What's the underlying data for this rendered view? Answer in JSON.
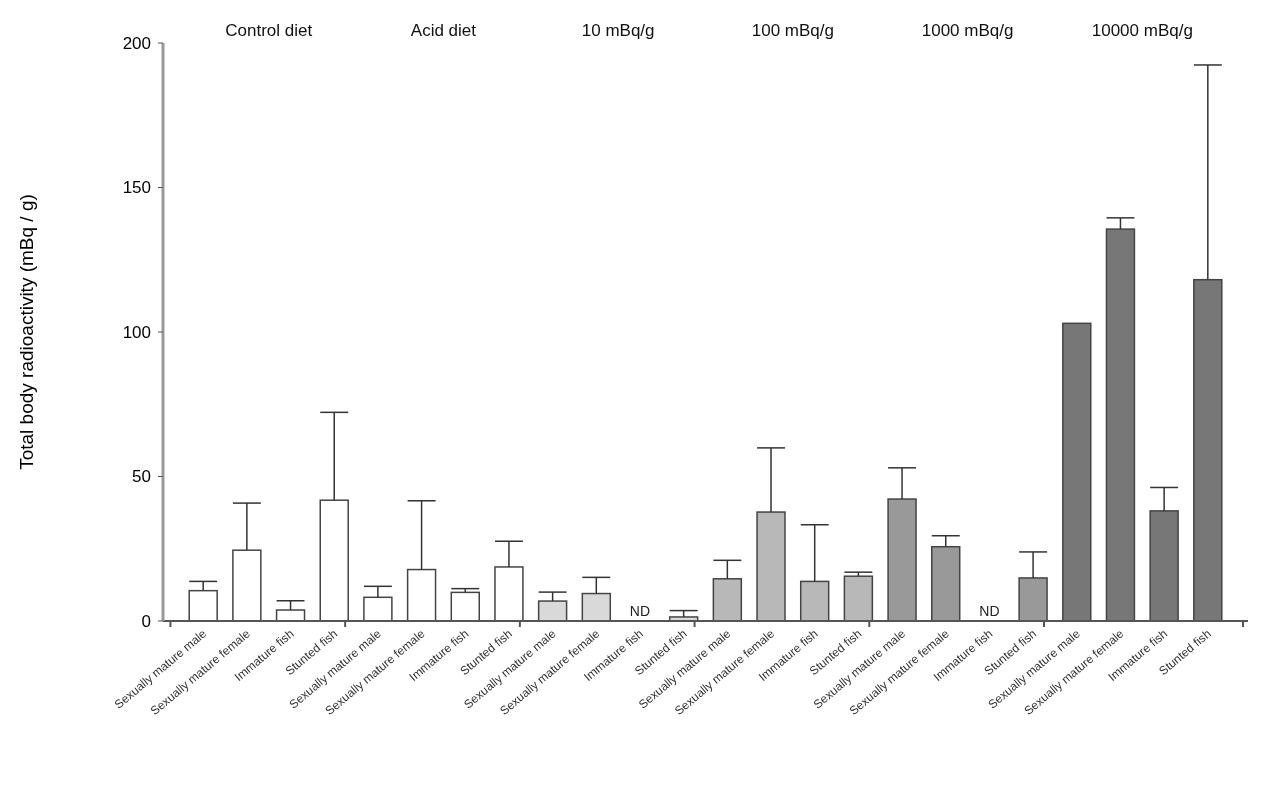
{
  "chart_data": {
    "type": "bar",
    "ylabel": "Total body radioactivity (mBq / g)",
    "ylim": [
      0,
      200
    ],
    "yticks": [
      0,
      50,
      100,
      150,
      200
    ],
    "annotations": [
      "Control diet",
      "Acid diet",
      "10 mBq/g",
      "100 mBq/g",
      "1000 mBq/g",
      "10000 mBq/g"
    ],
    "categories": [
      "Sexually mature male",
      "Sexually mature female",
      "Immature fish",
      "Stunted fish",
      "Sexually mature male",
      "Sexually mature female",
      "Immature fish",
      "Stunted fish",
      "Sexually mature male",
      "Sexually mature female",
      "Immature fish",
      "Stunted fish",
      "Sexually mature male",
      "Sexually mature female",
      "Immature fish",
      "Stunted fish",
      "Sexually mature male",
      "Sexually mature female",
      "Immature fish",
      "Stunted fish",
      "Sexually mature male",
      "Sexually mature female",
      "Immature fish",
      "Stunted fish"
    ],
    "series": [
      {
        "color": "#ffffff",
        "values": [
          10.5,
          24.5,
          3.8,
          41.8,
          null,
          null,
          null,
          null,
          null,
          null,
          null,
          null,
          null,
          null,
          null,
          null,
          null,
          null,
          null,
          null,
          null,
          null,
          null,
          null
        ],
        "errors": [
          [
            10.5,
            13.7
          ],
          [
            24.5,
            40.8
          ],
          [
            3.8,
            7.0
          ],
          [
            41.8,
            72.2
          ],
          null,
          null,
          null,
          null,
          null,
          null,
          null,
          null,
          null,
          null,
          null,
          null,
          null,
          null,
          null,
          null,
          null,
          null,
          null,
          null
        ]
      },
      {
        "color": "#ffffff",
        "values": [
          null,
          null,
          null,
          null,
          8.2,
          17.8,
          9.9,
          18.7,
          null,
          null,
          null,
          null,
          null,
          null,
          null,
          null,
          null,
          null,
          null,
          null,
          null,
          null,
          null,
          null
        ],
        "errors": [
          null,
          null,
          null,
          null,
          [
            8.2,
            12.0
          ],
          [
            17.8,
            41.6
          ],
          [
            9.9,
            11.2
          ],
          [
            18.7,
            27.6
          ],
          null,
          null,
          null,
          null,
          null,
          null,
          null,
          null,
          null,
          null,
          null,
          null,
          null,
          null,
          null,
          null
        ]
      },
      {
        "color": "#d9d9d9",
        "values": [
          null,
          null,
          null,
          null,
          null,
          null,
          null,
          null,
          6.9,
          9.5,
          null,
          1.4,
          null,
          null,
          null,
          null,
          null,
          null,
          null,
          null,
          null,
          null,
          null,
          null
        ],
        "errors": [
          null,
          null,
          null,
          null,
          null,
          null,
          null,
          null,
          [
            6.9,
            10.0
          ],
          [
            9.5,
            15.1
          ],
          null,
          [
            1.4,
            3.6
          ],
          null,
          null,
          null,
          null,
          null,
          null,
          null,
          null,
          null,
          null,
          null,
          null
        ],
        "value_labels": [
          null,
          null,
          null,
          null,
          null,
          null,
          null,
          null,
          null,
          null,
          "ND",
          null,
          null,
          null,
          null,
          null,
          null,
          null,
          null,
          null,
          null,
          null,
          null,
          null
        ]
      },
      {
        "color": "#b8b8b8",
        "values": [
          null,
          null,
          null,
          null,
          null,
          null,
          null,
          null,
          null,
          null,
          null,
          null,
          14.6,
          37.7,
          13.7,
          15.5,
          null,
          null,
          null,
          null,
          null,
          null,
          null,
          null
        ],
        "errors": [
          null,
          null,
          null,
          null,
          null,
          null,
          null,
          null,
          null,
          null,
          null,
          null,
          [
            14.6,
            21.0
          ],
          [
            37.7,
            59.9
          ],
          [
            13.7,
            33.3
          ],
          [
            15.5,
            16.9
          ],
          null,
          null,
          null,
          null,
          null,
          null,
          null,
          null
        ]
      },
      {
        "color": "#999999",
        "values": [
          null,
          null,
          null,
          null,
          null,
          null,
          null,
          null,
          null,
          null,
          null,
          null,
          null,
          null,
          null,
          null,
          42.2,
          25.7,
          null,
          14.9,
          null,
          null,
          null,
          null
        ],
        "errors": [
          null,
          null,
          null,
          null,
          null,
          null,
          null,
          null,
          null,
          null,
          null,
          null,
          null,
          null,
          null,
          null,
          [
            42.2,
            53.0
          ],
          [
            25.7,
            29.5
          ],
          null,
          [
            14.9,
            23.9
          ],
          null,
          null,
          null,
          null
        ],
        "value_labels": [
          null,
          null,
          null,
          null,
          null,
          null,
          null,
          null,
          null,
          null,
          null,
          null,
          null,
          null,
          null,
          null,
          null,
          null,
          "ND",
          null,
          null,
          null,
          null,
          null
        ]
      },
      {
        "color": "#777777",
        "values": [
          null,
          null,
          null,
          null,
          null,
          null,
          null,
          null,
          null,
          null,
          null,
          null,
          null,
          null,
          null,
          null,
          null,
          null,
          null,
          null,
          103.0,
          135.6,
          38.1,
          118.1
        ],
        "errors": [
          null,
          null,
          null,
          null,
          null,
          null,
          null,
          null,
          null,
          null,
          null,
          null,
          null,
          null,
          null,
          null,
          null,
          null,
          null,
          null,
          null,
          [
            135.6,
            139.5
          ],
          [
            38.1,
            46.2
          ],
          [
            118.1,
            192.4
          ]
        ]
      }
    ]
  }
}
